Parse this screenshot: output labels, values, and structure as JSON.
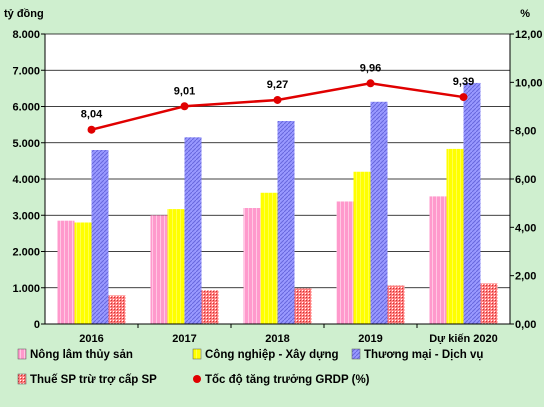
{
  "chart_data": {
    "type": "bar",
    "ylabel_left": "tỷ đồng",
    "ylabel_right": "%",
    "categories": [
      "2016",
      "2017",
      "2018",
      "2019",
      "Dự kiến 2020"
    ],
    "y_left_ticks": [
      "0",
      "1.000",
      "2.000",
      "3.000",
      "4.000",
      "5.000",
      "6.000",
      "7.000",
      "8.000"
    ],
    "y_right_ticks": [
      "0,00",
      "2,00",
      "4,00",
      "6,00",
      "8,00",
      "10,00",
      "12,00"
    ],
    "ylim_left": [
      0,
      8000
    ],
    "ylim_right": [
      0,
      12
    ],
    "grid": true,
    "legend_position": "bottom",
    "series": [
      {
        "name": "Nông lâm thủy sản",
        "kind": "bar",
        "color": "#ff99cc",
        "values": [
          2850,
          3000,
          3200,
          3380,
          3520
        ]
      },
      {
        "name": "Công nghiệp - Xây dựng",
        "kind": "bar",
        "color": "#ffff00",
        "values": [
          2800,
          3170,
          3620,
          4200,
          4830
        ]
      },
      {
        "name": "Thương mại - Dịch vụ",
        "kind": "bar",
        "color": "#9999ff",
        "values": [
          4800,
          5150,
          5600,
          6130,
          6650
        ]
      },
      {
        "name": "Thuế SP trừ trợ cấp SP",
        "kind": "bar",
        "color": "#ff8080",
        "values": [
          790,
          930,
          980,
          1060,
          1120
        ]
      },
      {
        "name": "Tốc độ tăng trưởng GRDP (%)",
        "kind": "line",
        "axis": "right",
        "color": "#e00000",
        "values": [
          8.04,
          9.01,
          9.27,
          9.96,
          9.39
        ],
        "labels": [
          "8,04",
          "9,01",
          "9,27",
          "9,96",
          "9,39"
        ]
      }
    ]
  }
}
